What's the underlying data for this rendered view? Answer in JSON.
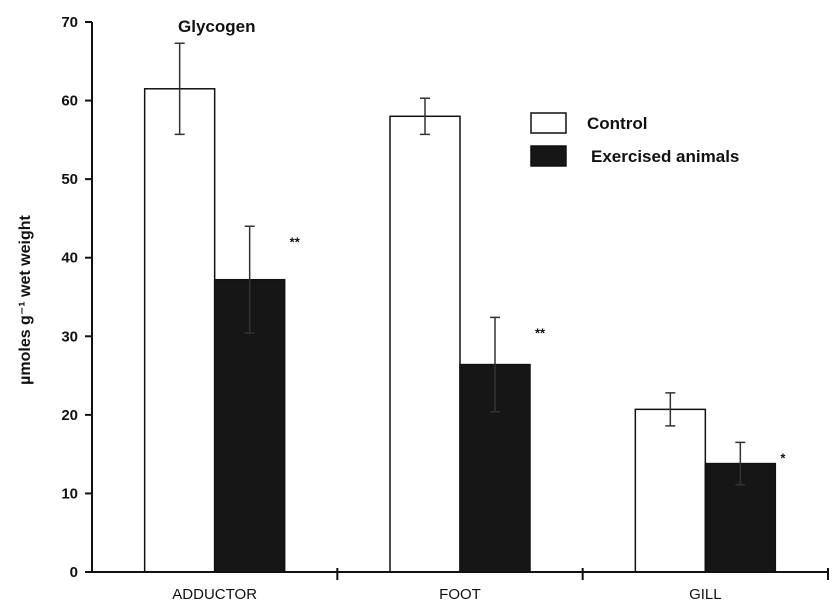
{
  "chart_data": {
    "type": "bar",
    "title": "Glycogen",
    "ylabel": "µmoles g⁻¹ wet weight",
    "ylim": [
      0,
      70
    ],
    "yticks": [
      0,
      10,
      20,
      30,
      40,
      50,
      60,
      70
    ],
    "categories": [
      "ADDUCTOR",
      "FOOT",
      "GILL"
    ],
    "series": [
      {
        "name": "Control",
        "values": [
          61.5,
          58,
          20.7
        ],
        "errors": [
          5.8,
          2.3,
          2.1
        ],
        "significance": [
          "",
          "",
          ""
        ],
        "color": "#ffffff"
      },
      {
        "name": "Exercised animals",
        "values": [
          37.2,
          26.4,
          13.8
        ],
        "errors": [
          6.8,
          6.0,
          2.7
        ],
        "significance": [
          "**",
          "**",
          "*"
        ],
        "color": "#161616"
      }
    ],
    "grid": false,
    "legend_position": "top-right"
  }
}
